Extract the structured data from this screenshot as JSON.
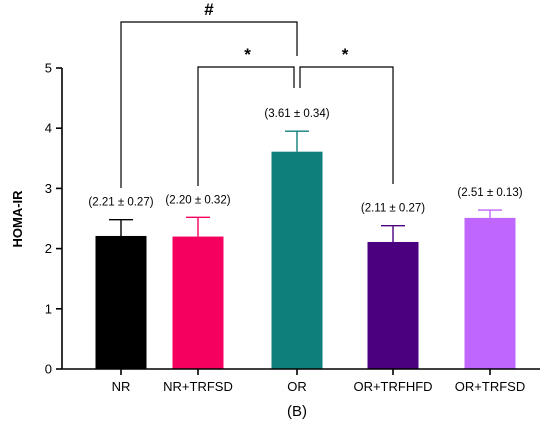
{
  "chart_data": {
    "type": "bar",
    "ylabel": "HOMA-IR",
    "ylim": [
      0,
      5
    ],
    "yticks": [
      "0",
      "1",
      "2",
      "3",
      "4",
      "5"
    ],
    "categories": [
      "NR",
      "NR+TRFSD",
      "OR",
      "OR+TRFHFD",
      "OR+TRFSD"
    ],
    "values": [
      2.21,
      2.2,
      3.61,
      2.11,
      2.51
    ],
    "errors": [
      0.27,
      0.32,
      0.34,
      0.27,
      0.13
    ],
    "data_labels": [
      "(2.21 ± 0.27)",
      "(2.20 ± 0.32)",
      "(3.61 ± 0.34)",
      "(2.11 ± 0.27)",
      "(2.51 ± 0.13)"
    ],
    "colors": [
      "#000000",
      "#f5005f",
      "#0f7f7c",
      "#4b0080",
      "#bf66ff"
    ],
    "significance": [
      {
        "label": "#",
        "from": "NR",
        "to": "OR"
      },
      {
        "label": "*",
        "from": "NR+TRFSD",
        "to": "OR"
      },
      {
        "label": "*",
        "from": "OR",
        "to": "OR+TRFHFD"
      }
    ],
    "panel_label": "(B)"
  }
}
